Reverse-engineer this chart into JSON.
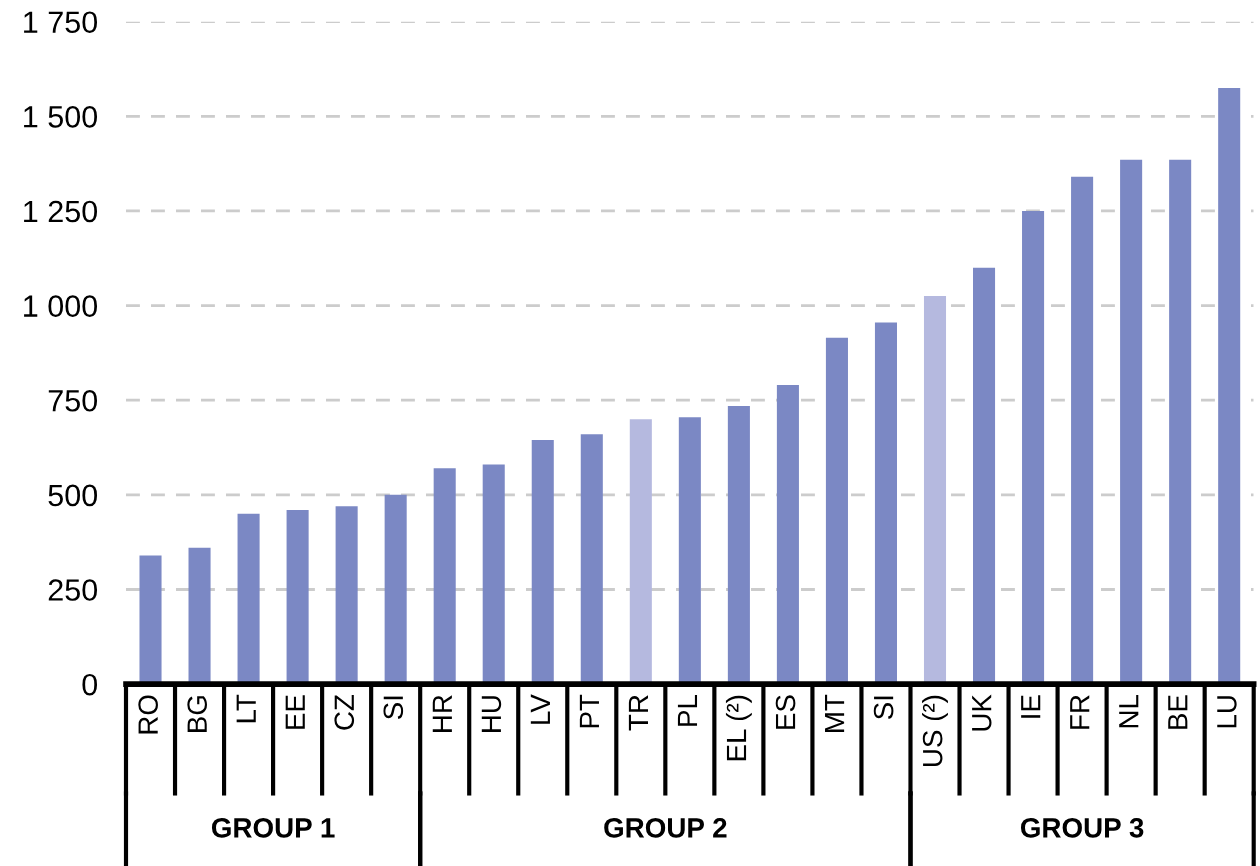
{
  "chart_data": {
    "type": "bar",
    "categories": [
      "RO",
      "BG",
      "LT",
      "EE",
      "CZ",
      "SI",
      "HR",
      "HU",
      "LV",
      "PT",
      "TR",
      "PL",
      "EL (²)",
      "ES",
      "MT",
      "SI",
      "US (²)",
      "UK",
      "IE",
      "FR",
      "NL",
      "BE",
      "LU"
    ],
    "values": [
      340,
      360,
      450,
      460,
      470,
      500,
      570,
      580,
      645,
      660,
      700,
      705,
      735,
      790,
      915,
      955,
      1025,
      1100,
      1250,
      1340,
      1385,
      1385,
      1575
    ],
    "colors": [
      "#7b88c4",
      "#7b88c4",
      "#7b88c4",
      "#7b88c4",
      "#7b88c4",
      "#7b88c4",
      "#7b88c4",
      "#7b88c4",
      "#7b88c4",
      "#7b88c4",
      "#b5b9df",
      "#7b88c4",
      "#7b88c4",
      "#7b88c4",
      "#7b88c4",
      "#7b88c4",
      "#b5b9df",
      "#7b88c4",
      "#7b88c4",
      "#7b88c4",
      "#7b88c4",
      "#7b88c4",
      "#7b88c4"
    ],
    "ylim": [
      0,
      1750
    ],
    "yticks": [
      0,
      250,
      500,
      750,
      {
        "value": 1000,
        "label": "1 000"
      },
      {
        "value": 1250,
        "label": "1 250"
      },
      {
        "value": 1500,
        "label": "1 500"
      },
      {
        "value": 1750,
        "label": "1 750"
      }
    ],
    "grid": "y",
    "annotations": [
      "GROUP 1",
      "GROUP 2",
      "GROUP 3"
    ]
  }
}
